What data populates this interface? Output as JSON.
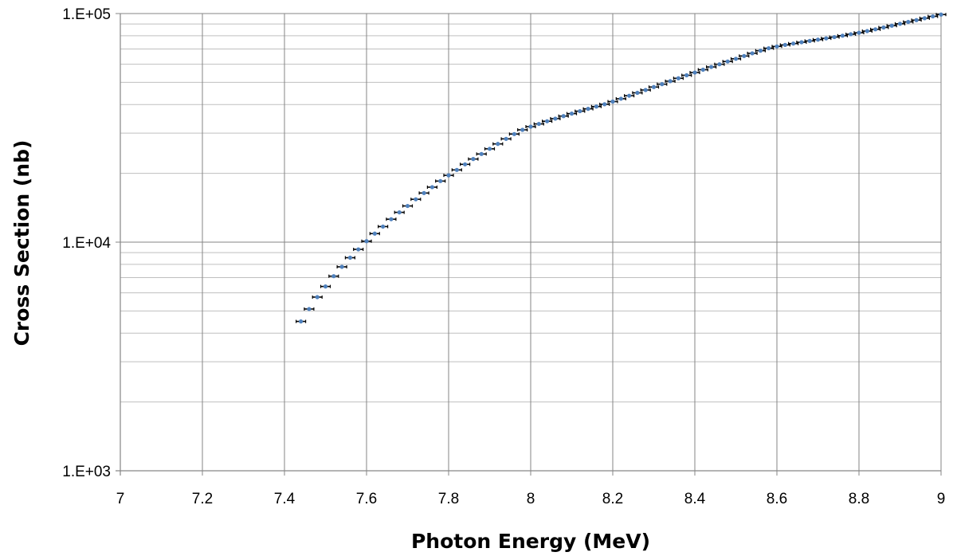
{
  "chart_data": {
    "type": "scatter",
    "title": "",
    "xlabel": "Photon Energy (MeV)",
    "ylabel": "Cross Section (nb)",
    "xlim": [
      7,
      9
    ],
    "ylim": [
      1000,
      100000
    ],
    "yscale": "log",
    "grid": true,
    "legend": "none",
    "x_ticks": [
      7,
      7.2,
      7.4,
      7.6,
      7.8,
      8,
      8.2,
      8.4,
      8.6,
      8.8,
      9
    ],
    "x_tick_labels": [
      "7",
      "7.2",
      "7.4",
      "7.6",
      "7.8",
      "8",
      "8.2",
      "8.4",
      "8.6",
      "8.8",
      "9"
    ],
    "y_ticks": [
      1000,
      10000,
      100000
    ],
    "y_tick_labels": [
      "1.E+03",
      "1.E+04",
      "1.E+05"
    ],
    "series": [
      {
        "marker_color": "#4f81bd",
        "errorbar_color": "#000000",
        "x": [
          7.44,
          7.46,
          7.48,
          7.5,
          7.52,
          7.54,
          7.56,
          7.58,
          7.6,
          7.62,
          7.64,
          7.66,
          7.68,
          7.7,
          7.72,
          7.74,
          7.76,
          7.78,
          7.8,
          7.82,
          7.84,
          7.86,
          7.88,
          7.9,
          7.92,
          7.94,
          7.96,
          7.98,
          8.0,
          8.02,
          8.04,
          8.06,
          8.08,
          8.1,
          8.12,
          8.14,
          8.16,
          8.18,
          8.2,
          8.22,
          8.24,
          8.26,
          8.28,
          8.3,
          8.32,
          8.34,
          8.36,
          8.38,
          8.4,
          8.42,
          8.44,
          8.46,
          8.48,
          8.5,
          8.52,
          8.54,
          8.56,
          8.58,
          8.6,
          8.62,
          8.64,
          8.66,
          8.68,
          8.7,
          8.72,
          8.74,
          8.76,
          8.78,
          8.8,
          8.82,
          8.84,
          8.86,
          8.88,
          8.9,
          8.92,
          8.94,
          8.96,
          8.98,
          9.0
        ],
        "y": [
          4500,
          5100,
          5750,
          6400,
          7100,
          7800,
          8550,
          9300,
          10100,
          10900,
          11700,
          12600,
          13500,
          14400,
          15400,
          16400,
          17400,
          18500,
          19600,
          20700,
          21900,
          23100,
          24300,
          25600,
          26900,
          28300,
          29700,
          31000,
          32000,
          32900,
          33800,
          34700,
          35600,
          36500,
          37400,
          38300,
          39200,
          40100,
          41200,
          42400,
          43700,
          45000,
          46300,
          47700,
          49100,
          50600,
          52100,
          53700,
          55200,
          56800,
          58400,
          60000,
          61700,
          63400,
          65200,
          67000,
          68800,
          70500,
          71800,
          72900,
          73900,
          74900,
          75900,
          76900,
          77900,
          78900,
          80000,
          81200,
          82400,
          83800,
          85300,
          86900,
          88500,
          90200,
          91900,
          93600,
          95400,
          97200,
          99000
        ]
      }
    ]
  }
}
